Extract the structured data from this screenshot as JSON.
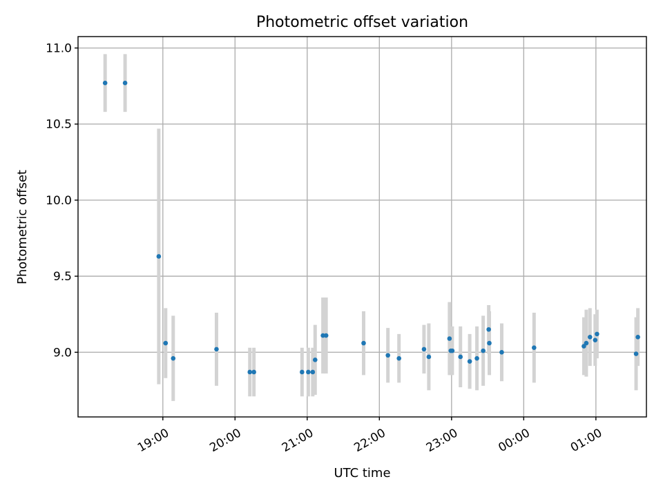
{
  "chart_data": {
    "type": "scatter",
    "title": "Photometric offset variation",
    "xlabel": "UTC time",
    "ylabel": "Photometric offset",
    "grid": true,
    "x_axis": {
      "unit": "minutes after 18:00 UTC",
      "range": [
        -10.5,
        462
      ],
      "ticks": [
        {
          "value": 60,
          "label": "19:00"
        },
        {
          "value": 120,
          "label": "20:00"
        },
        {
          "value": 180,
          "label": "21:00"
        },
        {
          "value": 240,
          "label": "22:00"
        },
        {
          "value": 300,
          "label": "23:00"
        },
        {
          "value": 360,
          "label": "00:00"
        },
        {
          "value": 420,
          "label": "01:00"
        }
      ]
    },
    "y_axis": {
      "range": [
        8.575,
        11.075
      ],
      "ticks": [
        {
          "value": 9.0,
          "label": "9.0"
        },
        {
          "value": 9.5,
          "label": "9.5"
        },
        {
          "value": 10.0,
          "label": "10.0"
        },
        {
          "value": 10.5,
          "label": "10.5"
        },
        {
          "value": 11.0,
          "label": "11.0"
        }
      ]
    },
    "series": [
      {
        "color": "#1f77b4",
        "errorbar_color": "#d3d3d3",
        "points": [
          {
            "x": 12,
            "y": 10.77,
            "err": 0.19
          },
          {
            "x": 28.6,
            "y": 10.77,
            "err": 0.19
          },
          {
            "x": 56.6,
            "y": 9.63,
            "err": 0.84
          },
          {
            "x": 62.3,
            "y": 9.06,
            "err": 0.23
          },
          {
            "x": 68.6,
            "y": 8.96,
            "err": 0.28
          },
          {
            "x": 104.6,
            "y": 9.02,
            "err": 0.24
          },
          {
            "x": 132.3,
            "y": 8.87,
            "err": 0.16
          },
          {
            "x": 135.7,
            "y": 8.87,
            "err": 0.16
          },
          {
            "x": 175.7,
            "y": 8.87,
            "err": 0.16
          },
          {
            "x": 180.9,
            "y": 8.87,
            "err": 0.16
          },
          {
            "x": 184.6,
            "y": 8.87,
            "err": 0.16
          },
          {
            "x": 186.6,
            "y": 8.95,
            "err": 0.23
          },
          {
            "x": 193.1,
            "y": 9.11,
            "err": 0.25
          },
          {
            "x": 195.7,
            "y": 9.11,
            "err": 0.25
          },
          {
            "x": 226.9,
            "y": 9.06,
            "err": 0.21
          },
          {
            "x": 247.1,
            "y": 8.98,
            "err": 0.18
          },
          {
            "x": 256.3,
            "y": 8.96,
            "err": 0.16
          },
          {
            "x": 277.1,
            "y": 9.02,
            "err": 0.16
          },
          {
            "x": 281.1,
            "y": 8.97,
            "err": 0.22
          },
          {
            "x": 298.3,
            "y": 9.09,
            "err": 0.24
          },
          {
            "x": 299.4,
            "y": 9.01,
            "err": 0.16
          },
          {
            "x": 300.6,
            "y": 9.01,
            "err": 0.16
          },
          {
            "x": 307.4,
            "y": 8.97,
            "err": 0.2
          },
          {
            "x": 315.1,
            "y": 8.94,
            "err": 0.18
          },
          {
            "x": 321.1,
            "y": 8.96,
            "err": 0.21
          },
          {
            "x": 326.3,
            "y": 9.01,
            "err": 0.23
          },
          {
            "x": 330.9,
            "y": 9.15,
            "err": 0.16
          },
          {
            "x": 331.4,
            "y": 9.06,
            "err": 0.21
          },
          {
            "x": 341.7,
            "y": 9.0,
            "err": 0.19
          },
          {
            "x": 368.6,
            "y": 9.03,
            "err": 0.23
          },
          {
            "x": 410.0,
            "y": 9.04,
            "err": 0.19
          },
          {
            "x": 412.0,
            "y": 9.06,
            "err": 0.22
          },
          {
            "x": 415.1,
            "y": 9.1,
            "err": 0.19
          },
          {
            "x": 419.4,
            "y": 9.08,
            "err": 0.17
          },
          {
            "x": 420.9,
            "y": 9.12,
            "err": 0.16
          },
          {
            "x": 453.4,
            "y": 8.99,
            "err": 0.24
          },
          {
            "x": 454.9,
            "y": 9.1,
            "err": 0.19
          }
        ]
      }
    ]
  }
}
